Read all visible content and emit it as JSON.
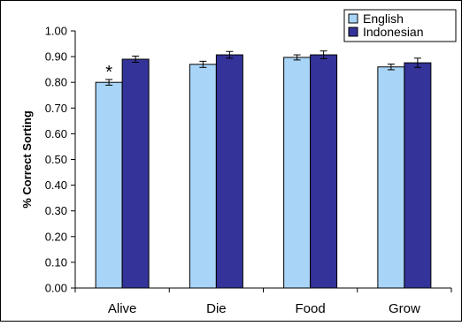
{
  "chart_data": {
    "type": "bar",
    "title": "",
    "xlabel": "",
    "ylabel": "% Correct Sorting",
    "ylim": [
      0,
      1.0
    ],
    "ytick_step": 0.1,
    "yticks": [
      "0.00",
      "0.10",
      "0.20",
      "0.30",
      "0.40",
      "0.50",
      "0.60",
      "0.70",
      "0.80",
      "0.90",
      "1.00"
    ],
    "categories": [
      "Alive",
      "Die",
      "Food",
      "Grow"
    ],
    "series": [
      {
        "name": "English",
        "color": "#a8d4f8",
        "values": [
          0.8,
          0.87,
          0.897,
          0.86
        ],
        "errors": [
          0.011,
          0.012,
          0.01,
          0.011
        ]
      },
      {
        "name": "Indonesian",
        "color": "#333399",
        "values": [
          0.89,
          0.907,
          0.907,
          0.876
        ],
        "errors": [
          0.012,
          0.013,
          0.015,
          0.018
        ]
      }
    ],
    "grid": false,
    "legend_position": "top-right",
    "annotations": [
      {
        "text": "*",
        "category": "Alive",
        "series": "English"
      }
    ]
  }
}
